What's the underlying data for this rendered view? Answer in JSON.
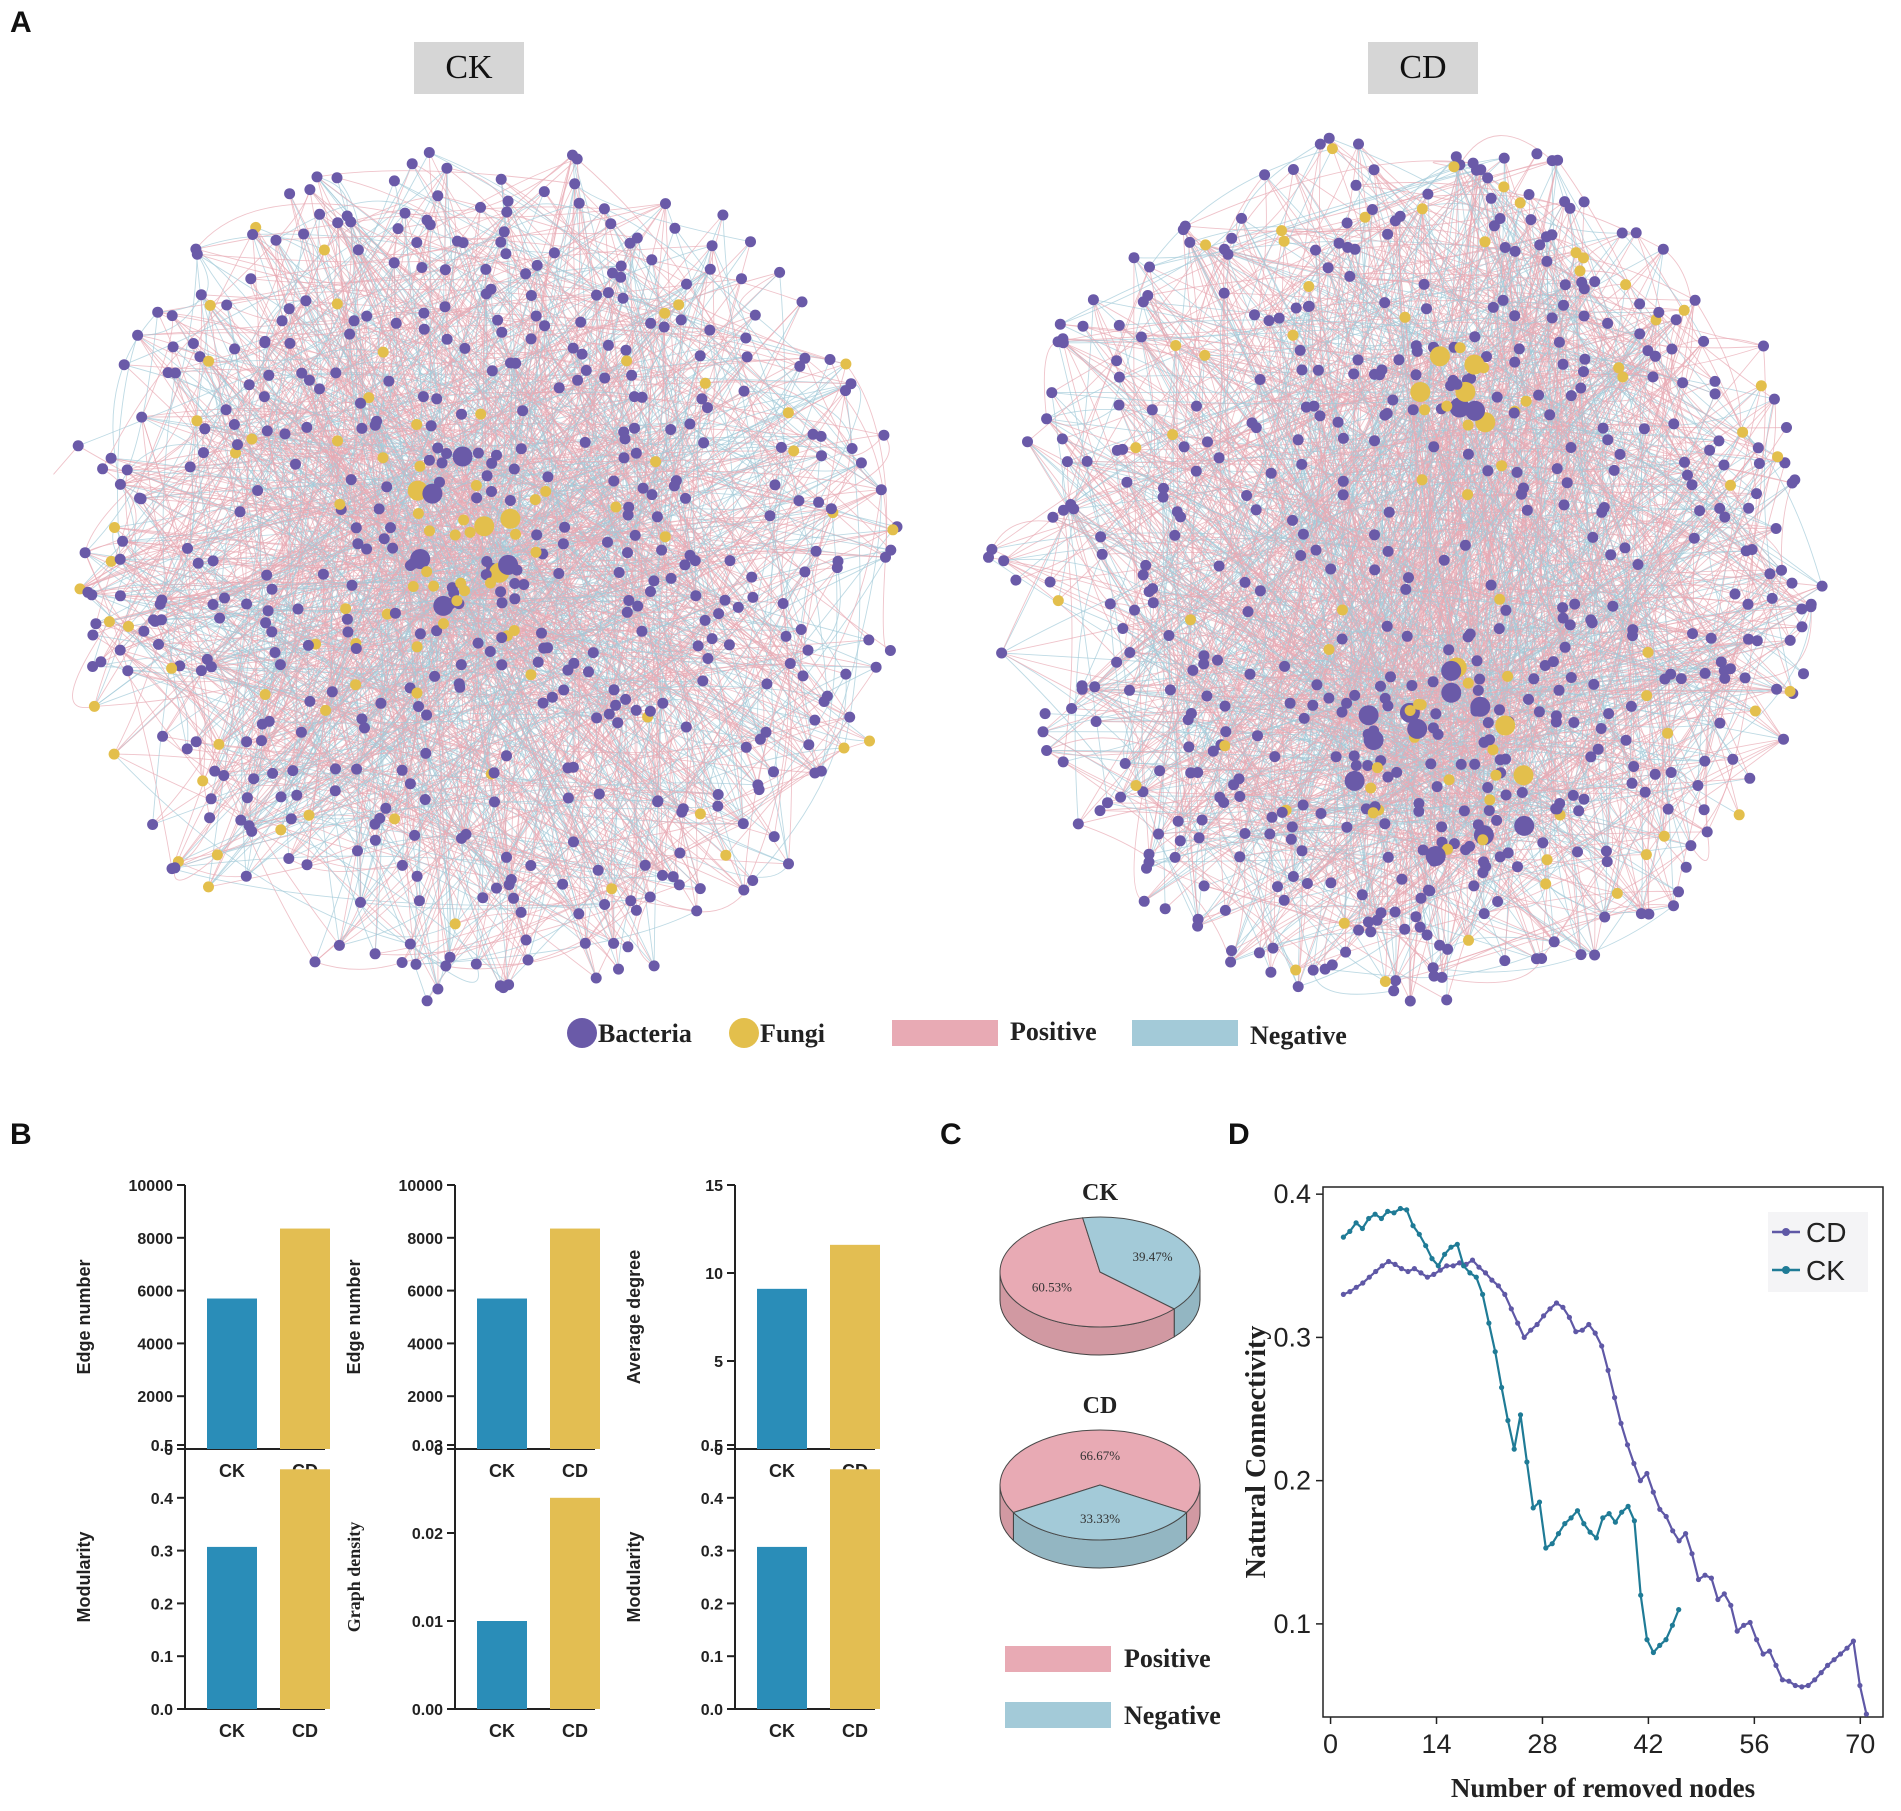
{
  "panels": {
    "a": "A",
    "b": "B",
    "c": "C",
    "d": "D"
  },
  "colors": {
    "bacteria": "#6a5aa8",
    "fungi": "#e3bf4c",
    "positive": "#e8aab4",
    "negative": "#a3cad8",
    "ck_bar": "#2a8db8",
    "cd_bar": "#e3be52",
    "cd_line": "#5f58a6",
    "ck_line": "#1f7b96"
  },
  "network": {
    "ck_title": "CK",
    "cd_title": "CD",
    "legend": {
      "bacteria": "Bacteria",
      "fungi": "Fungi",
      "positive": "Positive",
      "negative": "Negative"
    }
  },
  "chart_data": [
    {
      "type": "bar",
      "id": "b1",
      "categories": [
        "CK",
        "CD"
      ],
      "values": [
        5700,
        8350
      ],
      "ylabel": "Edge number",
      "ylim": [
        0,
        10000
      ],
      "yticks": [
        "0",
        "2000",
        "4000",
        "6000",
        "8000",
        "10000"
      ]
    },
    {
      "type": "bar",
      "id": "b2",
      "categories": [
        "CK",
        "CD"
      ],
      "values": [
        5700,
        8350
      ],
      "ylabel": "Edge number",
      "ylim": [
        0,
        10000
      ],
      "yticks": [
        "0",
        "2000",
        "4000",
        "6000",
        "8000",
        "10000"
      ]
    },
    {
      "type": "bar",
      "id": "b3",
      "categories": [
        "CK",
        "CD"
      ],
      "values": [
        9.1,
        11.6
      ],
      "ylabel": "Average degree",
      "ylim": [
        0,
        15
      ],
      "yticks": [
        "0",
        "5",
        "10",
        "15"
      ]
    },
    {
      "type": "bar",
      "id": "b4",
      "categories": [
        "CK",
        "CD"
      ],
      "values": [
        0.307,
        0.454
      ],
      "ylabel": "Modularity",
      "ylim": [
        0,
        0.5
      ],
      "yticks": [
        "0.0",
        "0.1",
        "0.2",
        "0.3",
        "0.4",
        "0.5"
      ]
    },
    {
      "type": "bar",
      "id": "b5",
      "categories": [
        "CK",
        "CD"
      ],
      "values": [
        0.01,
        0.024
      ],
      "ylabel": "Graph density",
      "ylim": [
        0,
        0.03
      ],
      "yticks": [
        "0.00",
        "0.01",
        "0.02",
        "0.03"
      ]
    },
    {
      "type": "bar",
      "id": "b6",
      "categories": [
        "CK",
        "CD"
      ],
      "values": [
        0.307,
        0.454
      ],
      "ylabel": "Modularity",
      "ylim": [
        0,
        0.5
      ],
      "yticks": [
        "0.0",
        "0.1",
        "0.2",
        "0.3",
        "0.4",
        "0.5"
      ]
    },
    {
      "type": "pie",
      "id": "c1",
      "title": "CK",
      "labels": [
        "Positive",
        "Negative"
      ],
      "values": [
        60.53,
        39.47
      ],
      "value_labels": [
        "60.53%",
        "39.47%"
      ]
    },
    {
      "type": "pie",
      "id": "c2",
      "title": "CD",
      "labels": [
        "Positive",
        "Negative"
      ],
      "values": [
        66.67,
        33.33
      ],
      "value_labels": [
        "66.67%",
        "33.33%"
      ]
    },
    {
      "type": "line",
      "id": "d",
      "xlabel": "Number of removed nodes",
      "ylabel": "Natural Connectivity",
      "xlim": [
        -1,
        73
      ],
      "ylim": [
        0.035,
        0.405
      ],
      "xticks": [
        "0",
        "14",
        "28",
        "42",
        "56",
        "70"
      ],
      "yticks": [
        "0.1",
        "0.2",
        "0.3",
        "0.4"
      ],
      "series": [
        {
          "name": "CD",
          "values": [
            0.33,
            0.332,
            0.335,
            0.338,
            0.342,
            0.346,
            0.35,
            0.353,
            0.351,
            0.348,
            0.346,
            0.348,
            0.345,
            0.342,
            0.344,
            0.347,
            0.35,
            0.35,
            0.352,
            0.351,
            0.354,
            0.349,
            0.345,
            0.34,
            0.336,
            0.33,
            0.32,
            0.31,
            0.3,
            0.305,
            0.309,
            0.315,
            0.32,
            0.324,
            0.321,
            0.314,
            0.304,
            0.305,
            0.309,
            0.303,
            0.294,
            0.277,
            0.258,
            0.24,
            0.225,
            0.212,
            0.2,
            0.205,
            0.192,
            0.18,
            0.175,
            0.165,
            0.158,
            0.163,
            0.149,
            0.131,
            0.134,
            0.132,
            0.117,
            0.121,
            0.113,
            0.095,
            0.099,
            0.101,
            0.089,
            0.079,
            0.081,
            0.071,
            0.061,
            0.06,
            0.057,
            0.056,
            0.057,
            0.061,
            0.066,
            0.071,
            0.075,
            0.079,
            0.083,
            0.088,
            0.057,
            0.037
          ],
          "x_start": 1.7,
          "x_end": 70.8
        },
        {
          "name": "CK",
          "values": [
            0.37,
            0.374,
            0.38,
            0.376,
            0.383,
            0.386,
            0.383,
            0.388,
            0.387,
            0.39,
            0.389,
            0.378,
            0.372,
            0.364,
            0.355,
            0.35,
            0.358,
            0.363,
            0.365,
            0.35,
            0.345,
            0.342,
            0.33,
            0.31,
            0.29,
            0.265,
            0.242,
            0.222,
            0.246,
            0.213,
            0.181,
            0.185,
            0.153,
            0.156,
            0.163,
            0.17,
            0.174,
            0.179,
            0.17,
            0.164,
            0.16,
            0.174,
            0.177,
            0.171,
            0.178,
            0.182,
            0.172,
            0.12,
            0.089,
            0.08,
            0.085,
            0.089,
            0.099,
            0.11
          ],
          "x_start": 1.7,
          "x_end": 46.0
        }
      ]
    }
  ]
}
